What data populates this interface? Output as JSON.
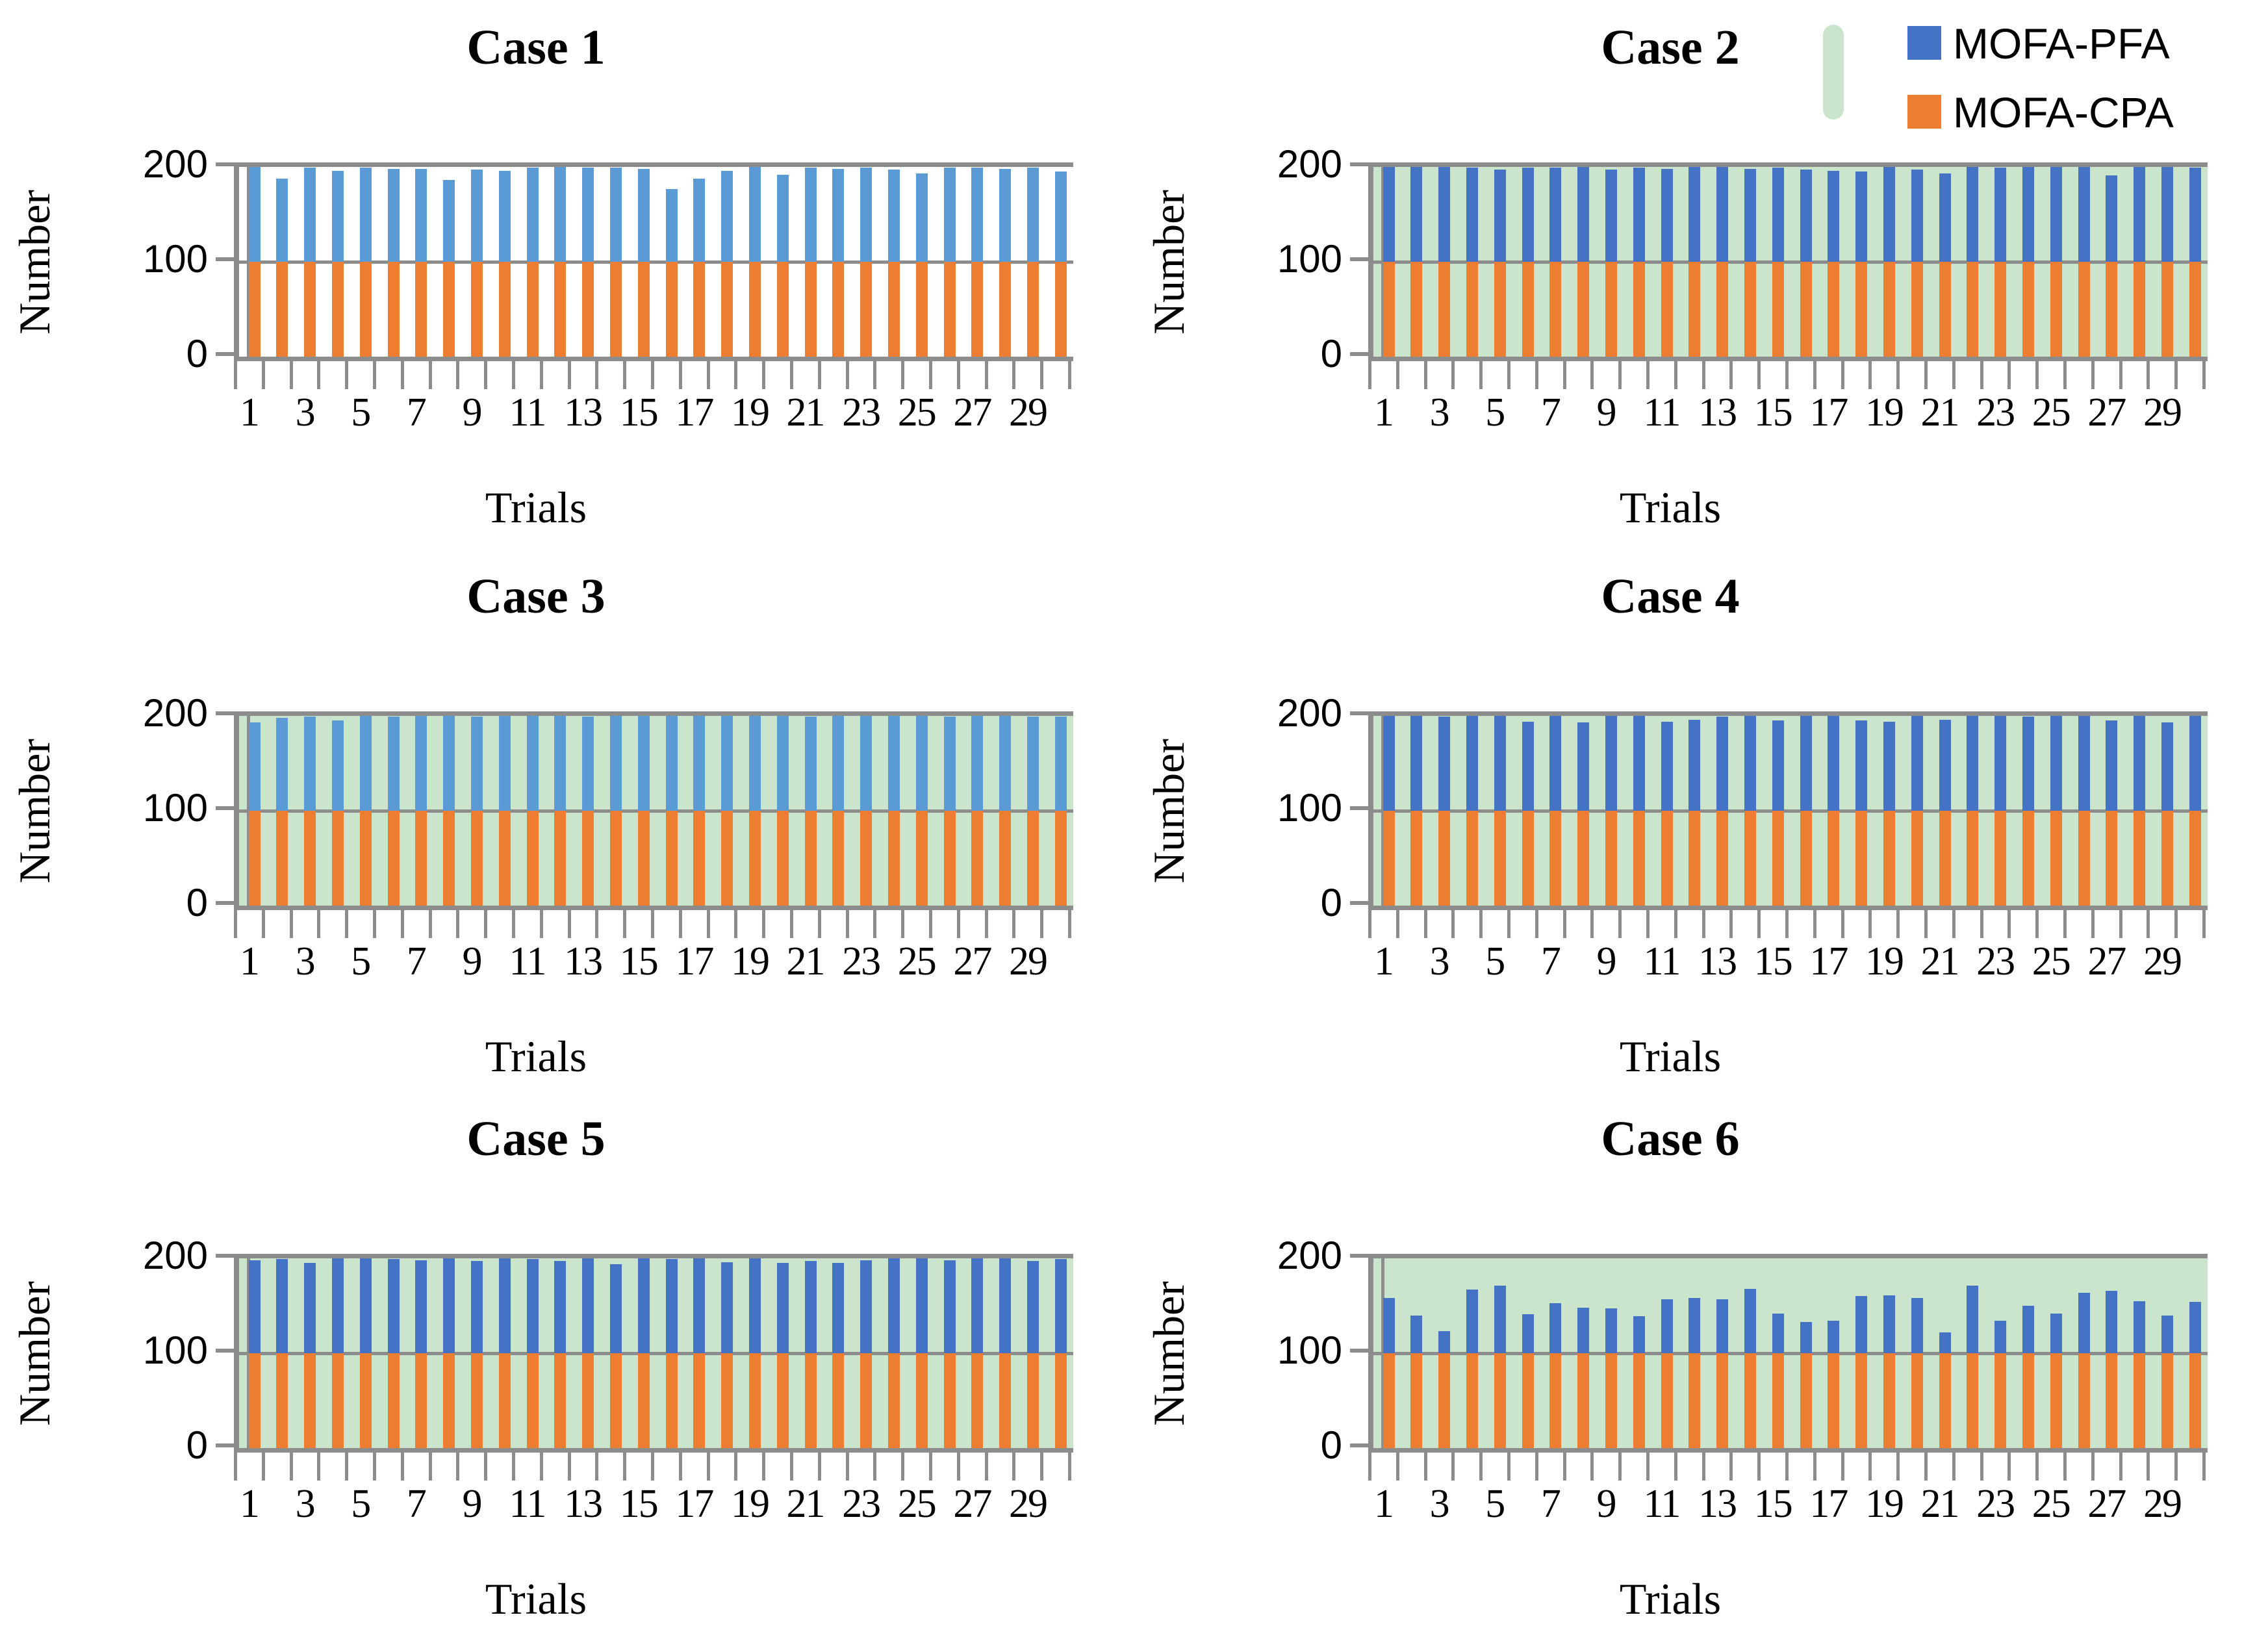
{
  "legend": {
    "items": [
      {
        "label": "MOFA-PFA",
        "color": "#4472C4"
      },
      {
        "label": "MOFA-CPA",
        "color": "#ED7D31"
      }
    ],
    "area_swatch_color": "#CBE5CC"
  },
  "colors": {
    "blue_light": "#5B9BD5",
    "blue_dark": "#4472C4",
    "orange": "#ED7D31",
    "plot_green": "#CBE5CC",
    "plot_white": "#FFFFFF",
    "axis_gray": "#8C8C8C"
  },
  "axis": {
    "y_label": "Number",
    "x_label": "Trials",
    "y_ticks": [
      "200",
      "100",
      "0"
    ],
    "x_tick_labels": [
      "1",
      "3",
      "5",
      "7",
      "9",
      "11",
      "13",
      "15",
      "17",
      "19",
      "21",
      "23",
      "25",
      "27",
      "29"
    ]
  },
  "chart_data": [
    {
      "type": "bar",
      "stacked": true,
      "title": "Case 1",
      "xlabel": "Trials",
      "ylabel": "Number",
      "ylim": [
        0,
        200
      ],
      "yticks": [
        0,
        100,
        200
      ],
      "plot_bg": "#FFFFFF",
      "pfa_color": "#5B9BD5",
      "cpa_color": "#ED7D31",
      "categories": [
        "1",
        "2",
        "3",
        "4",
        "5",
        "6",
        "7",
        "8",
        "9",
        "10",
        "11",
        "12",
        "13",
        "14",
        "15",
        "16",
        "17",
        "18",
        "19",
        "20",
        "21",
        "22",
        "23",
        "24",
        "25",
        "26",
        "27",
        "28",
        "29",
        "30"
      ],
      "series": [
        {
          "name": "MOFA-PFA",
          "values": [
            100,
            88,
            99,
            96,
            99,
            98,
            98,
            86,
            97,
            96,
            99,
            100,
            99,
            99,
            98,
            77,
            88,
            96,
            100,
            92,
            99,
            98,
            99,
            97,
            93,
            99,
            99,
            98,
            99,
            95
          ]
        },
        {
          "name": "MOFA-CPA",
          "values": [
            100,
            100,
            100,
            100,
            100,
            100,
            100,
            100,
            100,
            100,
            100,
            100,
            100,
            100,
            100,
            100,
            100,
            100,
            100,
            100,
            100,
            100,
            100,
            100,
            100,
            100,
            100,
            100,
            100,
            100
          ]
        }
      ]
    },
    {
      "type": "bar",
      "stacked": true,
      "title": "Case 2",
      "xlabel": "Trials",
      "ylabel": "Number",
      "ylim": [
        0,
        200
      ],
      "yticks": [
        0,
        100,
        200
      ],
      "plot_bg": "#CBE5CC",
      "pfa_color": "#4472C4",
      "cpa_color": "#ED7D31",
      "categories": [
        "1",
        "2",
        "3",
        "4",
        "5",
        "6",
        "7",
        "8",
        "9",
        "10",
        "11",
        "12",
        "13",
        "14",
        "15",
        "16",
        "17",
        "18",
        "19",
        "20",
        "21",
        "22",
        "23",
        "24",
        "25",
        "26",
        "27",
        "28",
        "29",
        "30"
      ],
      "series": [
        {
          "name": "MOFA-PFA",
          "values": [
            100,
            100,
            100,
            99,
            97,
            99,
            99,
            100,
            97,
            99,
            98,
            100,
            100,
            98,
            99,
            97,
            96,
            95,
            100,
            97,
            93,
            100,
            99,
            100,
            100,
            100,
            91,
            100,
            100,
            99
          ]
        },
        {
          "name": "MOFA-CPA",
          "values": [
            100,
            100,
            100,
            100,
            100,
            100,
            100,
            100,
            100,
            100,
            100,
            100,
            100,
            100,
            100,
            100,
            100,
            100,
            100,
            100,
            100,
            100,
            100,
            100,
            100,
            100,
            100,
            100,
            100,
            100
          ]
        }
      ]
    },
    {
      "type": "bar",
      "stacked": true,
      "title": "Case 3",
      "xlabel": "Trials",
      "ylabel": "Number",
      "ylim": [
        0,
        200
      ],
      "yticks": [
        0,
        100,
        200
      ],
      "plot_bg": "#CBE5CC",
      "pfa_color": "#5B9BD5",
      "cpa_color": "#ED7D31",
      "categories": [
        "1",
        "2",
        "3",
        "4",
        "5",
        "6",
        "7",
        "8",
        "9",
        "10",
        "11",
        "12",
        "13",
        "14",
        "15",
        "16",
        "17",
        "18",
        "19",
        "20",
        "21",
        "22",
        "23",
        "24",
        "25",
        "26",
        "27",
        "28",
        "29",
        "30"
      ],
      "series": [
        {
          "name": "MOFA-PFA",
          "values": [
            93,
            98,
            99,
            95,
            100,
            99,
            100,
            100,
            99,
            100,
            100,
            100,
            99,
            100,
            100,
            100,
            100,
            100,
            100,
            100,
            99,
            100,
            100,
            100,
            100,
            99,
            100,
            100,
            99,
            99
          ]
        },
        {
          "name": "MOFA-CPA",
          "values": [
            100,
            100,
            100,
            100,
            100,
            100,
            100,
            100,
            100,
            100,
            100,
            100,
            100,
            100,
            100,
            100,
            100,
            100,
            100,
            100,
            100,
            100,
            100,
            100,
            100,
            100,
            100,
            100,
            100,
            100
          ]
        }
      ]
    },
    {
      "type": "bar",
      "stacked": true,
      "title": "Case 4",
      "xlabel": "Trials",
      "ylabel": "Number",
      "ylim": [
        0,
        200
      ],
      "yticks": [
        0,
        100,
        200
      ],
      "plot_bg": "#CBE5CC",
      "pfa_color": "#4472C4",
      "cpa_color": "#ED7D31",
      "categories": [
        "1",
        "2",
        "3",
        "4",
        "5",
        "6",
        "7",
        "8",
        "9",
        "10",
        "11",
        "12",
        "13",
        "14",
        "15",
        "16",
        "17",
        "18",
        "19",
        "20",
        "21",
        "22",
        "23",
        "24",
        "25",
        "26",
        "27",
        "28",
        "29",
        "30"
      ],
      "series": [
        {
          "name": "MOFA-PFA",
          "values": [
            100,
            100,
            99,
            100,
            100,
            94,
            100,
            93,
            100,
            100,
            94,
            96,
            99,
            100,
            95,
            100,
            100,
            95,
            94,
            100,
            96,
            100,
            100,
            99,
            100,
            100,
            95,
            100,
            93,
            100
          ]
        },
        {
          "name": "MOFA-CPA",
          "values": [
            100,
            100,
            100,
            100,
            100,
            100,
            100,
            100,
            100,
            100,
            100,
            100,
            100,
            100,
            100,
            100,
            100,
            100,
            100,
            100,
            100,
            100,
            100,
            100,
            100,
            100,
            100,
            100,
            100,
            100
          ]
        }
      ]
    },
    {
      "type": "bar",
      "stacked": true,
      "title": "Case 5",
      "xlabel": "Trials",
      "ylabel": "Number",
      "ylim": [
        0,
        200
      ],
      "yticks": [
        0,
        100,
        200
      ],
      "plot_bg": "#CBE5CC",
      "pfa_color": "#4472C4",
      "cpa_color": "#ED7D31",
      "categories": [
        "1",
        "2",
        "3",
        "4",
        "5",
        "6",
        "7",
        "8",
        "9",
        "10",
        "11",
        "12",
        "13",
        "14",
        "15",
        "16",
        "17",
        "18",
        "19",
        "20",
        "21",
        "22",
        "23",
        "24",
        "25",
        "26",
        "27",
        "28",
        "29",
        "30"
      ],
      "series": [
        {
          "name": "MOFA-PFA",
          "values": [
            98,
            99,
            95,
            100,
            100,
            99,
            98,
            100,
            97,
            100,
            99,
            97,
            100,
            94,
            100,
            99,
            100,
            96,
            100,
            95,
            97,
            95,
            98,
            100,
            100,
            98,
            100,
            100,
            97,
            99
          ]
        },
        {
          "name": "MOFA-CPA",
          "values": [
            100,
            100,
            100,
            100,
            100,
            100,
            100,
            100,
            100,
            100,
            100,
            100,
            100,
            100,
            100,
            100,
            100,
            100,
            100,
            100,
            100,
            100,
            100,
            100,
            100,
            100,
            100,
            100,
            100,
            100
          ]
        }
      ]
    },
    {
      "type": "bar",
      "stacked": true,
      "title": "Case 6",
      "xlabel": "Trials",
      "ylabel": "Number",
      "ylim": [
        0,
        200
      ],
      "yticks": [
        0,
        100,
        200
      ],
      "plot_bg": "#CBE5CC",
      "pfa_color": "#4472C4",
      "cpa_color": "#ED7D31",
      "categories": [
        "1",
        "2",
        "3",
        "4",
        "5",
        "6",
        "7",
        "8",
        "9",
        "10",
        "11",
        "12",
        "13",
        "14",
        "15",
        "16",
        "17",
        "18",
        "19",
        "20",
        "21",
        "22",
        "23",
        "24",
        "25",
        "26",
        "27",
        "28",
        "29",
        "30"
      ],
      "series": [
        {
          "name": "MOFA-PFA",
          "values": [
            58,
            40,
            23,
            67,
            71,
            41,
            53,
            48,
            47,
            39,
            57,
            58,
            57,
            68,
            42,
            33,
            34,
            60,
            61,
            58,
            22,
            71,
            34,
            50,
            42,
            64,
            66,
            55,
            40,
            54
          ]
        },
        {
          "name": "MOFA-CPA",
          "values": [
            100,
            100,
            100,
            100,
            100,
            100,
            100,
            100,
            100,
            100,
            100,
            100,
            100,
            100,
            100,
            100,
            100,
            100,
            100,
            100,
            100,
            100,
            100,
            100,
            100,
            100,
            100,
            100,
            100,
            100
          ]
        }
      ]
    }
  ]
}
